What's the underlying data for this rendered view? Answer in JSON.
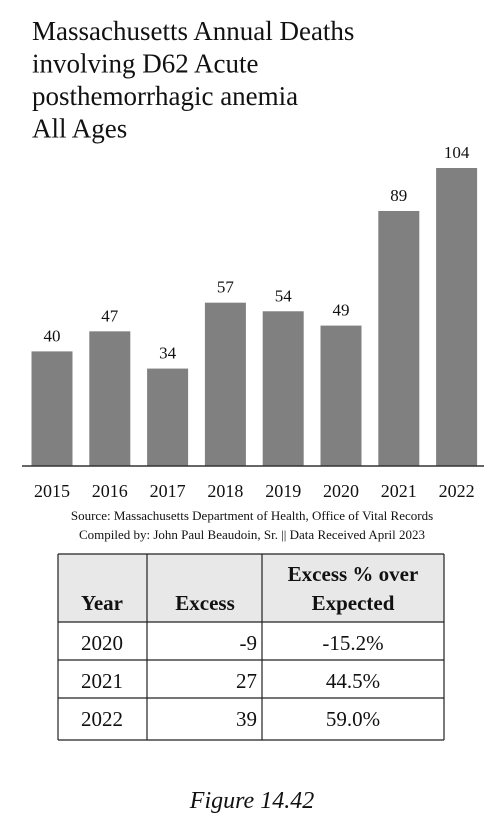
{
  "chart_data": {
    "type": "bar",
    "title": [
      "Massachusetts Annual Deaths",
      "involving D62 Acute",
      "posthemorrhagic anemia",
      "All Ages"
    ],
    "categories": [
      "2015",
      "2016",
      "2017",
      "2018",
      "2019",
      "2020",
      "2021",
      "2022"
    ],
    "values": [
      40,
      47,
      34,
      57,
      54,
      49,
      89,
      104
    ],
    "color": "#808080",
    "source": [
      "Source:  Massachusetts Department of Health, Office of Vital Records",
      "Compiled by:  John Paul Beaudoin, Sr. || Data Received April 2023"
    ]
  },
  "table": {
    "header": [
      "Year",
      "Excess",
      [
        "Excess % over",
        "Expected"
      ]
    ],
    "rows": [
      [
        "2020",
        "-9",
        "-15.2%"
      ],
      [
        "2021",
        "27",
        "44.5%"
      ],
      [
        "2022",
        "39",
        "59.0%"
      ]
    ]
  },
  "caption": "Figure 14.42"
}
